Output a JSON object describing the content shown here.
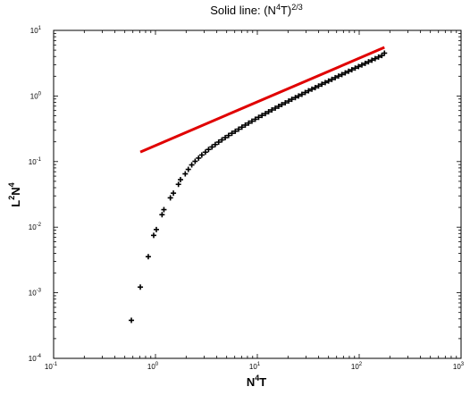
{
  "chart_data": {
    "type": "scatter",
    "title": {
      "prefix": "Solid line: (N",
      "sup1": "4",
      "mid": "T)",
      "sup2": "2/3"
    },
    "xlabel": {
      "a": "N",
      "sup": "4",
      "b": "T"
    },
    "ylabel": {
      "a": "L",
      "sup1": "2",
      "b": "N",
      "sup2": "4"
    },
    "xscale": "log",
    "yscale": "log",
    "xlim": [
      0.1,
      1000
    ],
    "ylim": [
      0.0001,
      10
    ],
    "grid": false,
    "xticks": [
      {
        "value": 0.1,
        "base": "10",
        "exp": "-1"
      },
      {
        "value": 1,
        "base": "10",
        "exp": "0"
      },
      {
        "value": 10,
        "base": "10",
        "exp": "1"
      },
      {
        "value": 100,
        "base": "10",
        "exp": "2"
      },
      {
        "value": 1000,
        "base": "10",
        "exp": "3"
      }
    ],
    "yticks": [
      {
        "value": 0.0001,
        "base": "10",
        "exp": "-4"
      },
      {
        "value": 0.001,
        "base": "10",
        "exp": "-3"
      },
      {
        "value": 0.01,
        "base": "10",
        "exp": "-2"
      },
      {
        "value": 0.1,
        "base": "10",
        "exp": "-1"
      },
      {
        "value": 1,
        "base": "10",
        "exp": "0"
      },
      {
        "value": 10,
        "base": "10",
        "exp": "1"
      }
    ],
    "series": [
      {
        "kind": "markers",
        "marker": "+",
        "color": "#000000",
        "x": [
          0.58,
          0.71,
          0.85,
          0.96,
          1.02,
          1.16,
          1.21,
          1.4,
          1.5,
          1.68,
          1.76,
          1.96,
          2.1,
          2.27,
          2.45,
          2.65,
          2.85,
          3.09,
          3.32,
          3.59,
          3.86,
          4.17,
          4.49,
          4.84,
          5.22,
          5.63,
          6.07,
          6.55,
          7.06,
          7.61,
          8.21,
          8.85,
          9.54,
          10.3,
          11.1,
          12.0,
          12.9,
          13.9,
          15.0,
          16.2,
          17.4,
          18.8,
          20.3,
          21.8,
          23.6,
          25.4,
          27.4,
          29.5,
          31.8,
          34.3,
          37.0,
          39.9,
          43.0,
          46.4,
          50.0,
          53.9,
          58.1,
          62.7,
          67.6,
          72.9,
          78.6,
          84.7,
          91.3,
          98.5,
          106.2,
          114.5,
          123.4,
          133.1,
          143.5,
          154.7,
          166.8,
          177.0
        ],
        "y": [
          0.00038,
          0.00122,
          0.00355,
          0.0075,
          0.0092,
          0.0155,
          0.0185,
          0.028,
          0.033,
          0.045,
          0.053,
          0.065,
          0.076,
          0.089,
          0.101,
          0.113,
          0.126,
          0.139,
          0.153,
          0.167,
          0.182,
          0.198,
          0.214,
          0.232,
          0.25,
          0.27,
          0.29,
          0.312,
          0.335,
          0.36,
          0.386,
          0.413,
          0.442,
          0.473,
          0.505,
          0.539,
          0.575,
          0.613,
          0.653,
          0.695,
          0.74,
          0.787,
          0.837,
          0.89,
          0.945,
          1.0,
          1.06,
          1.13,
          1.2,
          1.27,
          1.34,
          1.42,
          1.51,
          1.6,
          1.69,
          1.79,
          1.9,
          2.01,
          2.12,
          2.25,
          2.38,
          2.51,
          2.66,
          2.81,
          2.97,
          3.14,
          3.32,
          3.51,
          3.71,
          3.92,
          4.14,
          4.5
        ]
      },
      {
        "kind": "line",
        "color": "#e00000",
        "x": [
          0.71,
          177
        ],
        "y": [
          0.14,
          5.5
        ]
      }
    ]
  }
}
